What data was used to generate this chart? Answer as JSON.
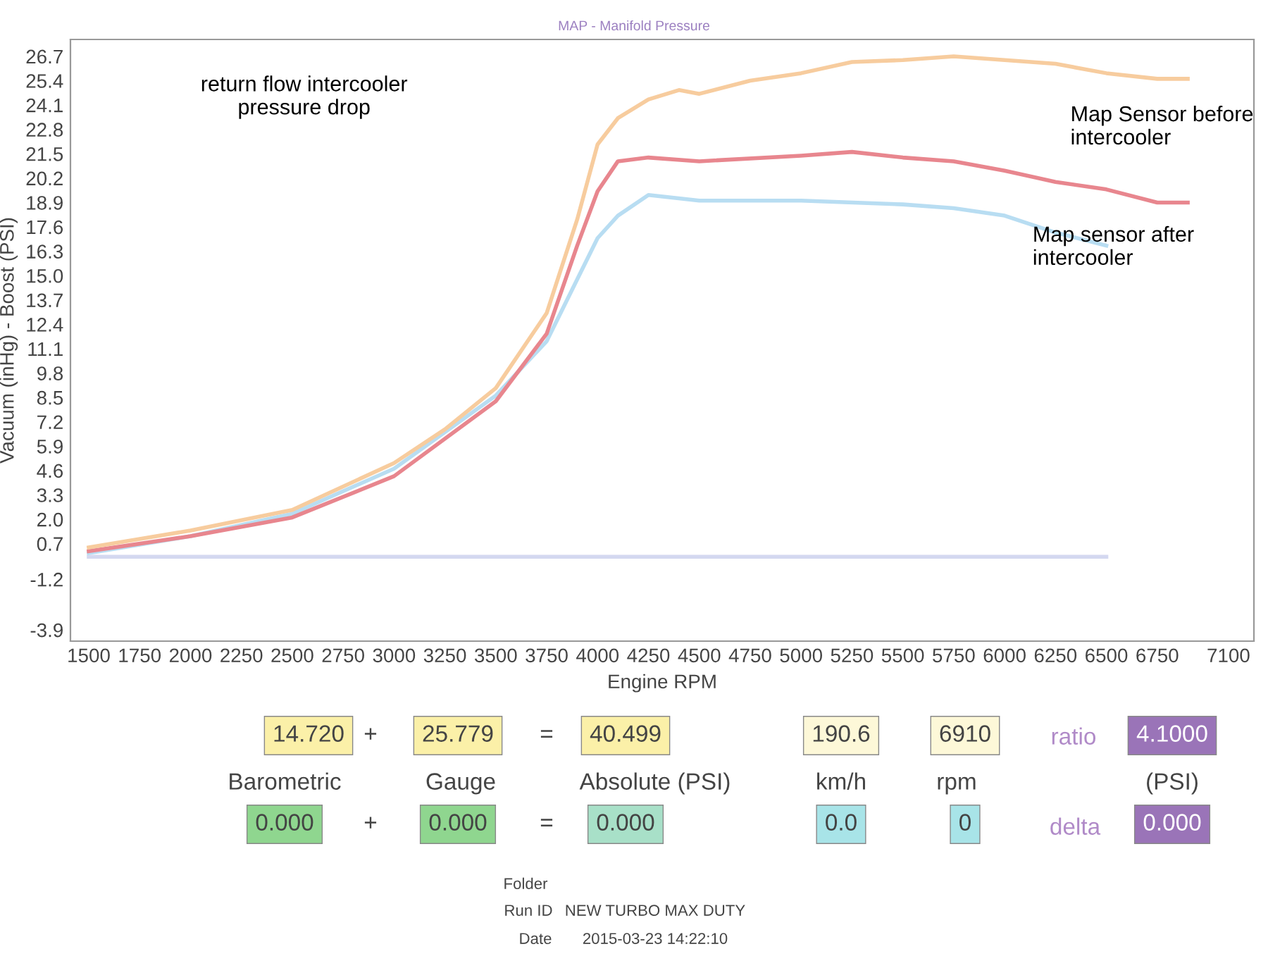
{
  "chart_data": [
    {
      "type": "line",
      "subtitle": "MAP - Manifold Pressure",
      "xlabel": "Engine RPM",
      "ylabel": "Vacuum (inHg) - Boost (PSI)",
      "annotations": [
        "return flow intercooler\npressure drop"
      ],
      "xlim": [
        1410,
        7225
      ],
      "xticks": [
        1500,
        1750,
        2000,
        2250,
        2500,
        2750,
        3000,
        3250,
        3500,
        3750,
        4000,
        4250,
        4500,
        4750,
        5000,
        5250,
        5500,
        5750,
        6000,
        6250,
        6500,
        6750,
        7100
      ],
      "ylim": [
        -4.5,
        27.6
      ],
      "yticks": [
        -3.9,
        -1.2,
        0.7,
        {
          "value": 2.0,
          "label": "2.0"
        },
        3.3,
        4.6,
        5.9,
        7.2,
        8.5,
        9.8,
        11.1,
        12.4,
        13.7,
        {
          "value": 15.0,
          "label": "15.0"
        },
        16.3,
        17.6,
        18.9,
        20.2,
        21.5,
        22.8,
        24.1,
        25.4,
        26.7
      ],
      "grid": false,
      "legend": false,
      "marker": "none",
      "line_style": "solid",
      "series": [
        {
          "color": "#d4d8f0",
          "x": [
            1500,
            6500
          ],
          "values": [
            0.0,
            0.0
          ]
        },
        {
          "color": "#b8ddf2",
          "x": [
            1500,
            2000,
            2500,
            3000,
            3500,
            3750,
            4000,
            4100,
            4250,
            4500,
            5000,
            5500,
            5750,
            6000,
            6250,
            6500
          ],
          "values": [
            0.2,
            1.1,
            2.3,
            4.7,
            8.6,
            11.5,
            17.0,
            18.2,
            19.3,
            19.0,
            19.0,
            18.8,
            18.6,
            18.2,
            17.3,
            16.6
          ]
        },
        {
          "name": "Map sensor after\nintercooler",
          "color": "#e8868e",
          "x": [
            1500,
            2000,
            2500,
            3000,
            3500,
            3750,
            3900,
            4000,
            4100,
            4250,
            4500,
            5000,
            5250,
            5500,
            5750,
            6000,
            6250,
            6500,
            6750,
            6900
          ],
          "values": [
            0.3,
            1.1,
            2.1,
            4.3,
            8.3,
            11.9,
            16.6,
            19.5,
            21.1,
            21.3,
            21.1,
            21.4,
            21.6,
            21.3,
            21.1,
            20.6,
            20.0,
            19.6,
            18.9,
            18.9
          ]
        },
        {
          "name": "Map Sensor before\nintercooler",
          "color": "#f7cc9e",
          "x": [
            1500,
            2000,
            2500,
            3000,
            3250,
            3500,
            3750,
            3900,
            4000,
            4100,
            4250,
            4400,
            4500,
            4750,
            5000,
            5250,
            5500,
            5750,
            6000,
            6250,
            6500,
            6750,
            6900
          ],
          "values": [
            0.5,
            1.4,
            2.5,
            5.0,
            6.8,
            9.0,
            13.0,
            18.0,
            22.0,
            23.4,
            24.4,
            24.9,
            24.7,
            25.4,
            25.8,
            26.4,
            26.5,
            26.7,
            26.5,
            26.3,
            25.8,
            25.5,
            25.5
          ]
        }
      ]
    },
    {
      "type": "other",
      "annotations": [
        "14.720",
        "+",
        "25.779",
        "=",
        "40.499",
        "190.6",
        "6910",
        "ratio",
        "4.1000",
        "Barometric",
        "Gauge",
        "Absolute (PSI)",
        "km/h",
        "rpm",
        "(PSI)",
        "0.000",
        "+",
        "0.000",
        "=",
        "0.000",
        "0.0",
        "0",
        "delta",
        "0.000",
        "Folder",
        "Run ID",
        "NEW TURBO MAX DUTY",
        "Date",
        "2015-03-23 14:22:10"
      ]
    }
  ]
}
